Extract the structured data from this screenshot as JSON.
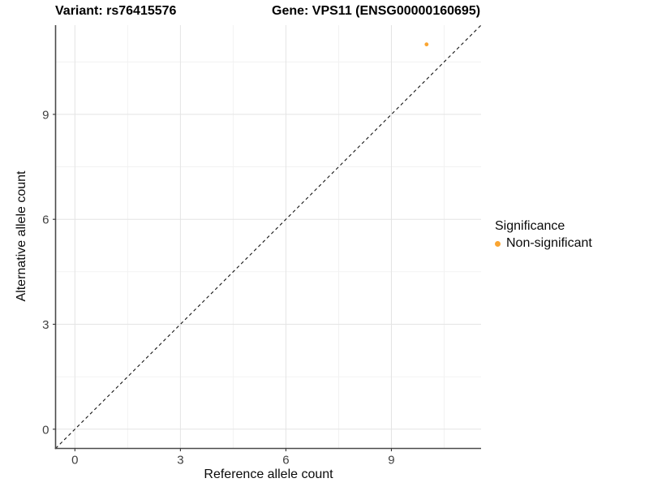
{
  "titles": {
    "variant": "Variant: rs76415576",
    "gene": "Gene: VPS11 (ENSG00000160695)"
  },
  "legend": {
    "title": "Significance",
    "items": [
      {
        "label": "Non-significant",
        "color": "#FAA532"
      }
    ]
  },
  "colors": {
    "background": "#ffffff",
    "grid_major": "#E4E4E4",
    "grid_minor": "#F1F1F1",
    "axis_line": "#4a4a4a",
    "tick_mark": "#333333",
    "tick_text": "#404040",
    "identity_line": "#151515",
    "point": "#FAA532"
  },
  "chart_data": {
    "type": "scatter",
    "title_left": "Variant: rs76415576",
    "title_right": "Gene: VPS11 (ENSG00000160695)",
    "xlabel": "Reference allele count",
    "ylabel": "Alternative allele count",
    "x": {
      "ticks": [
        0,
        3,
        6,
        9
      ],
      "minor_ticks": [
        1.5,
        4.5,
        7.5,
        10.5
      ],
      "range": [
        -0.55,
        11.55
      ]
    },
    "y": {
      "ticks": [
        0,
        3,
        6,
        9
      ],
      "minor_ticks": [
        1.5,
        4.5,
        7.5,
        10.5
      ],
      "range": [
        -0.55,
        11.55
      ]
    },
    "series": [
      {
        "name": "Non-significant",
        "color": "#FAA532",
        "points": [
          {
            "x": 10,
            "y": 11
          }
        ]
      }
    ],
    "identity_line": {
      "slope": 1,
      "intercept": 0,
      "style": "dashed"
    },
    "grid": true,
    "legend_position": "right",
    "legend_title": "Significance"
  },
  "layout_note": ""
}
